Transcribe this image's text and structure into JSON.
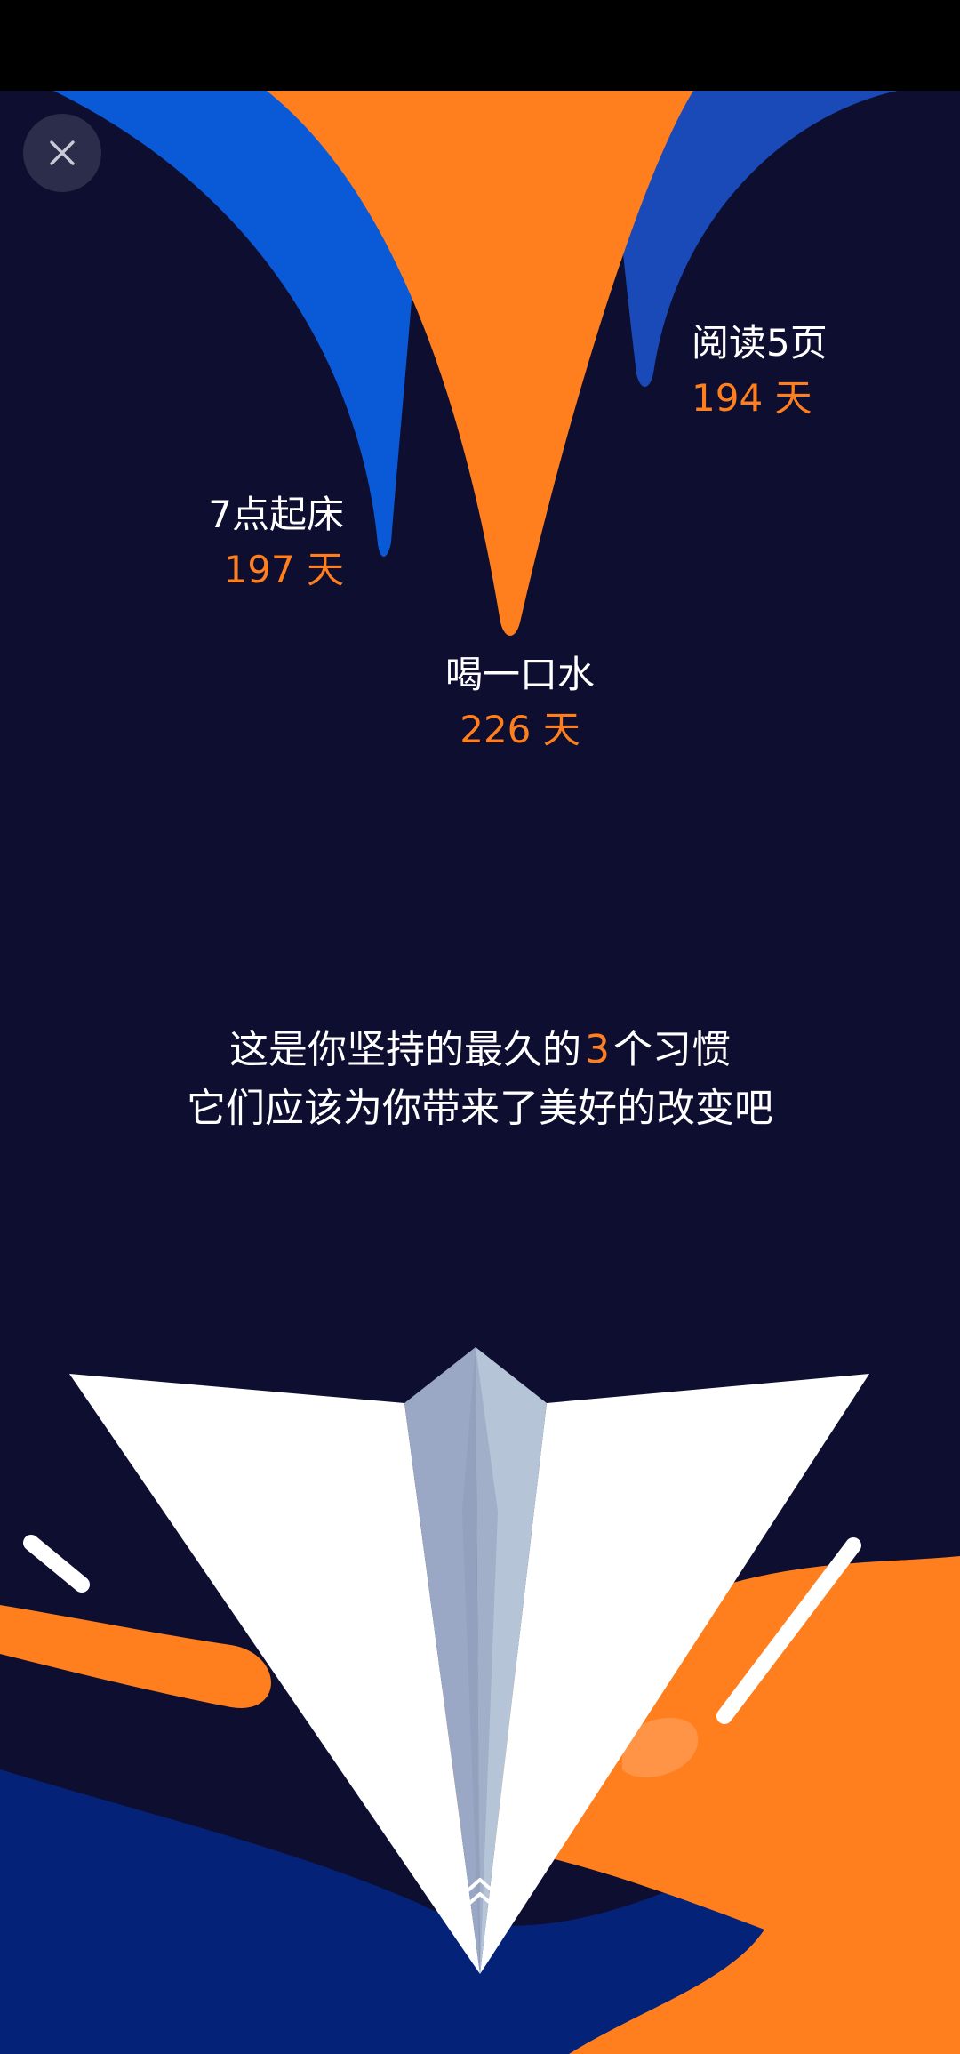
{
  "colors": {
    "background": "#0d0e30",
    "accent_orange": "#ff7f1f",
    "blue": "#0a5ad8",
    "deep_blue": "#052279",
    "white": "#ffffff"
  },
  "close_button": {
    "icon": "close-icon"
  },
  "habits": [
    {
      "name": "7点起床",
      "days": "197 天"
    },
    {
      "name": "喝一口水",
      "days": "226 天"
    },
    {
      "name": "阅读5页",
      "days": "194 天"
    }
  ],
  "summary": {
    "line1_before": "这是你坚持的最久的",
    "count": "3",
    "line1_after": "个习惯",
    "line2": "它们应该为你带来了美好的改变吧"
  },
  "swipe": {
    "icon": "chevron-up-icon"
  }
}
